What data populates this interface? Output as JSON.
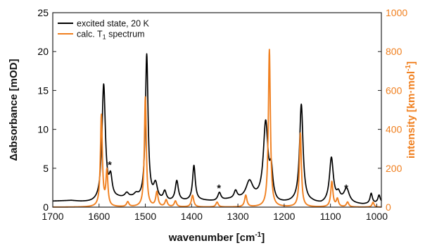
{
  "chart_data": {
    "type": "line",
    "x_axis": {
      "label_main": "wavenumber [cm",
      "label_sup": "-1",
      "label_end": "]",
      "range": [
        1700,
        990
      ],
      "reversed": true,
      "ticks": [
        1700,
        1600,
        1500,
        1400,
        1300,
        1200,
        1100,
        1000
      ]
    },
    "y_left": {
      "label": "Δabsorbance [mOD]",
      "range": [
        0,
        25
      ],
      "ticks": [
        0,
        5,
        10,
        15,
        20,
        25
      ],
      "color": "#000000"
    },
    "y_right": {
      "label": "intensity [km·mol",
      "label_sup": "-1",
      "label_end": "]",
      "range": [
        0,
        1000
      ],
      "ticks": [
        0,
        200,
        400,
        600,
        800,
        1000
      ],
      "color": "#f08020"
    },
    "legend": {
      "position": "top-left",
      "entries": [
        {
          "text": "excited state, 20 K",
          "color": "#000000"
        },
        {
          "text_main": "calc. T",
          "text_sub": "1",
          "text_end": " spectrum",
          "color": "#f08020"
        }
      ]
    },
    "series": [
      {
        "name": "excited state, 20 K",
        "axis": "left",
        "color": "#000000",
        "baseline": [
          [
            1700,
            0.75
          ],
          [
            1660,
            0.8
          ],
          [
            1640,
            0.65
          ],
          [
            1620,
            0.55
          ],
          [
            1600,
            0.5
          ],
          [
            1560,
            1.0
          ],
          [
            1530,
            1.0
          ],
          [
            1510,
            0.8
          ],
          [
            1450,
            0.6
          ],
          [
            1420,
            0.7
          ],
          [
            1380,
            0.8
          ],
          [
            1350,
            0.7
          ],
          [
            1320,
            0.9
          ],
          [
            1300,
            0.9
          ],
          [
            1250,
            0.8
          ],
          [
            1215,
            0.3
          ],
          [
            1180,
            0.5
          ],
          [
            1140,
            0.5
          ],
          [
            1120,
            0.3
          ],
          [
            1080,
            0.7
          ],
          [
            1060,
            0.4
          ],
          [
            1030,
            0.3
          ],
          [
            990,
            0.5
          ]
        ],
        "peaks": [
          {
            "x": 1590,
            "h": 15.0,
            "w": 4.5
          },
          {
            "x": 1575,
            "h": 2.5,
            "w": 4
          },
          {
            "x": 1540,
            "h": 0.6,
            "w": 5
          },
          {
            "x": 1520,
            "h": 0.5,
            "w": 6
          },
          {
            "x": 1497,
            "h": 18.7,
            "w": 3.5
          },
          {
            "x": 1478,
            "h": 2.0,
            "w": 5
          },
          {
            "x": 1458,
            "h": 1.2,
            "w": 4
          },
          {
            "x": 1432,
            "h": 2.6,
            "w": 4
          },
          {
            "x": 1395,
            "h": 4.5,
            "w": 3.5
          },
          {
            "x": 1340,
            "h": 1.0,
            "w": 4
          },
          {
            "x": 1305,
            "h": 1.0,
            "w": 4
          },
          {
            "x": 1275,
            "h": 2.3,
            "w": 9
          },
          {
            "x": 1240,
            "h": 10.0,
            "w": 6
          },
          {
            "x": 1228,
            "h": 3.5,
            "w": 4
          },
          {
            "x": 1163,
            "h": 12.6,
            "w": 4.5
          },
          {
            "x": 1098,
            "h": 5.7,
            "w": 5
          },
          {
            "x": 1083,
            "h": 0.8,
            "w": 4
          },
          {
            "x": 1065,
            "h": 1.8,
            "w": 7
          },
          {
            "x": 1012,
            "h": 1.3,
            "w": 3
          },
          {
            "x": 995,
            "h": 1.0,
            "w": 3
          }
        ]
      },
      {
        "name": "calc. T1 spectrum",
        "axis": "right",
        "color": "#f08020",
        "baseline": [],
        "peaks": [
          {
            "x": 1595,
            "h": 470,
            "w": 2.5
          },
          {
            "x": 1583,
            "h": 180,
            "w": 2.5
          },
          {
            "x": 1538,
            "h": 25,
            "w": 3
          },
          {
            "x": 1500,
            "h": 565,
            "w": 2.5
          },
          {
            "x": 1475,
            "h": 75,
            "w": 3
          },
          {
            "x": 1455,
            "h": 35,
            "w": 3
          },
          {
            "x": 1435,
            "h": 30,
            "w": 3
          },
          {
            "x": 1398,
            "h": 60,
            "w": 3
          },
          {
            "x": 1345,
            "h": 25,
            "w": 3
          },
          {
            "x": 1283,
            "h": 60,
            "w": 3
          },
          {
            "x": 1232,
            "h": 810,
            "w": 2.6
          },
          {
            "x": 1165,
            "h": 380,
            "w": 2.6
          },
          {
            "x": 1097,
            "h": 130,
            "w": 2.8
          },
          {
            "x": 1085,
            "h": 40,
            "w": 2.8
          },
          {
            "x": 1063,
            "h": 25,
            "w": 3
          },
          {
            "x": 1008,
            "h": 25,
            "w": 2.5
          }
        ]
      }
    ],
    "annotations": [
      {
        "text": "*",
        "x": 1577,
        "y": 5.7
      },
      {
        "text": "*",
        "x": 1341,
        "y": 2.7
      },
      {
        "text": "*",
        "x": 1066,
        "y": 2.7
      }
    ]
  }
}
